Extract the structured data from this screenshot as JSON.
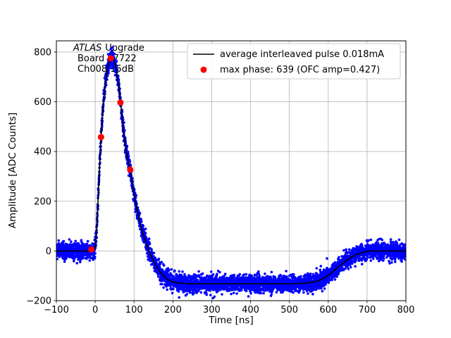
{
  "figure": {
    "background": "#ffffff"
  },
  "chart_data": {
    "type": "line+scatter",
    "xlabel": "Time [ns]",
    "ylabel": "Amplitude [ADC Counts]",
    "xlim": [
      -100,
      800
    ],
    "ylim": [
      -200,
      845
    ],
    "xticks": [
      -100,
      0,
      100,
      200,
      300,
      400,
      500,
      600,
      700,
      800
    ],
    "yticks": [
      -200,
      0,
      200,
      400,
      600,
      800
    ],
    "grid": true,
    "grid_color": "#b0b0b0",
    "annotation": {
      "line1_italic": "ATLAS",
      "line1_rest": "Upgrade",
      "line2": "Board 37722",
      "line3": "Ch008 15dB"
    },
    "legend": {
      "position": "upper right",
      "entries": [
        {
          "marker": "line",
          "color": "#000000",
          "label": "average interleaved pulse 0.018mA"
        },
        {
          "marker": "dot",
          "color": "#ff0000",
          "label": "max phase: 639 (OFC amp=0.427)"
        }
      ]
    },
    "series": [
      {
        "name": "average interleaved pulse",
        "type": "line",
        "color": "#000000",
        "points": [
          [
            -100,
            0
          ],
          [
            -30,
            0
          ],
          [
            -15,
            0
          ],
          [
            -8,
            0
          ],
          [
            -4,
            1
          ],
          [
            0,
            14
          ],
          [
            4,
            90
          ],
          [
            8,
            230
          ],
          [
            12,
            370
          ],
          [
            15,
            458
          ],
          [
            18,
            530
          ],
          [
            22,
            612
          ],
          [
            26,
            672
          ],
          [
            30,
            718
          ],
          [
            34,
            750
          ],
          [
            38,
            770
          ],
          [
            41,
            778
          ],
          [
            44,
            779
          ],
          [
            47,
            772
          ],
          [
            50,
            757
          ],
          [
            54,
            730
          ],
          [
            58,
            692
          ],
          [
            62,
            646
          ],
          [
            65,
            597
          ],
          [
            69,
            540
          ],
          [
            73,
            485
          ],
          [
            77,
            432
          ],
          [
            81,
            392
          ],
          [
            85,
            358
          ],
          [
            90,
            327
          ],
          [
            95,
            277
          ],
          [
            100,
            230
          ],
          [
            105,
            188
          ],
          [
            110,
            150
          ],
          [
            115,
            116
          ],
          [
            120,
            86
          ],
          [
            125,
            59
          ],
          [
            130,
            35
          ],
          [
            135,
            14
          ],
          [
            140,
            -5
          ],
          [
            145,
            -23
          ],
          [
            150,
            -39
          ],
          [
            155,
            -54
          ],
          [
            160,
            -67
          ],
          [
            165,
            -79
          ],
          [
            170,
            -89
          ],
          [
            175,
            -98
          ],
          [
            180,
            -106
          ],
          [
            185,
            -112
          ],
          [
            190,
            -117
          ],
          [
            195,
            -121
          ],
          [
            200,
            -124
          ],
          [
            210,
            -128
          ],
          [
            220,
            -130
          ],
          [
            235,
            -131
          ],
          [
            260,
            -132
          ],
          [
            300,
            -132
          ],
          [
            350,
            -132
          ],
          [
            400,
            -132
          ],
          [
            450,
            -132
          ],
          [
            500,
            -132
          ],
          [
            525,
            -131
          ],
          [
            545,
            -129
          ],
          [
            560,
            -126
          ],
          [
            572,
            -121
          ],
          [
            583,
            -114
          ],
          [
            594,
            -104
          ],
          [
            605,
            -92
          ],
          [
            616,
            -78
          ],
          [
            627,
            -63
          ],
          [
            638,
            -49
          ],
          [
            649,
            -36
          ],
          [
            660,
            -25
          ],
          [
            671,
            -16
          ],
          [
            682,
            -9
          ],
          [
            693,
            -4
          ],
          [
            704,
            -1
          ],
          [
            715,
            0
          ],
          [
            800,
            0
          ]
        ]
      },
      {
        "name": "interleaved pulse samples",
        "type": "scatter",
        "color": "#0000ff",
        "marker_radius": 1.8,
        "n_points": 4600,
        "noise_sigma": 17,
        "seed": 42
      },
      {
        "name": "max phase samples",
        "type": "scatter",
        "color": "#ff0000",
        "marker_radius": 4.5,
        "points": [
          [
            -10,
            6
          ],
          [
            15,
            458
          ],
          [
            40,
            775
          ],
          [
            65,
            597
          ],
          [
            90,
            327
          ]
        ]
      }
    ]
  }
}
